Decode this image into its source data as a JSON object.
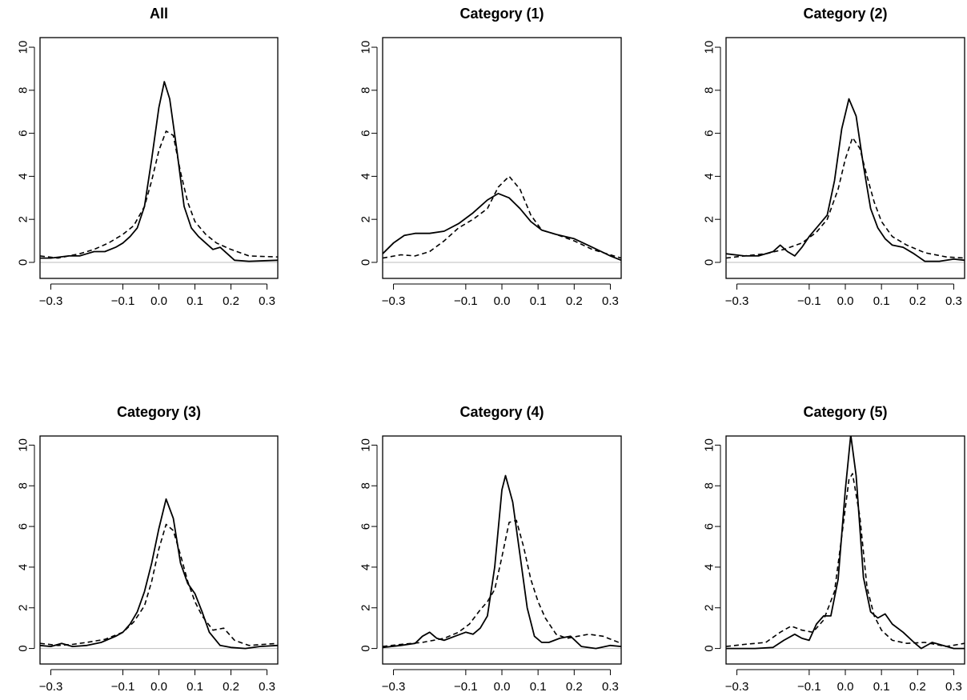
{
  "chart_data": [
    {
      "type": "line",
      "title": "All",
      "xlim": [
        -0.33,
        0.33
      ],
      "ylim": [
        0,
        10
      ],
      "xticks": [
        -0.3,
        -0.1,
        0.0,
        0.1,
        0.2,
        0.3
      ],
      "xtick_labels": [
        "−0.3",
        "−0.1",
        "0.0",
        "0.1",
        "0.2",
        "0.3"
      ],
      "yticks": [
        0,
        2,
        4,
        6,
        8,
        10
      ],
      "ytick_labels": [
        "0",
        "2",
        "4",
        "6",
        "8",
        "10"
      ],
      "series": [
        {
          "style": "solid",
          "x": [
            -0.33,
            -0.3,
            -0.25,
            -0.22,
            -0.2,
            -0.18,
            -0.15,
            -0.12,
            -0.1,
            -0.08,
            -0.06,
            -0.04,
            -0.02,
            0.0,
            0.015,
            0.03,
            0.05,
            0.07,
            0.09,
            0.11,
            0.13,
            0.15,
            0.17,
            0.19,
            0.21,
            0.25,
            0.3,
            0.33
          ],
          "y": [
            0.2,
            0.2,
            0.3,
            0.3,
            0.4,
            0.5,
            0.5,
            0.7,
            0.9,
            1.2,
            1.6,
            2.6,
            4.8,
            7.2,
            8.4,
            7.6,
            5.2,
            2.6,
            1.6,
            1.2,
            0.9,
            0.6,
            0.7,
            0.4,
            0.1,
            0.05,
            0.08,
            0.1
          ]
        },
        {
          "style": "dashed",
          "x": [
            -0.33,
            -0.28,
            -0.22,
            -0.18,
            -0.14,
            -0.1,
            -0.07,
            -0.04,
            -0.02,
            0.0,
            0.02,
            0.04,
            0.06,
            0.08,
            0.1,
            0.13,
            0.16,
            0.2,
            0.25,
            0.33
          ],
          "y": [
            0.3,
            0.2,
            0.4,
            0.6,
            0.9,
            1.3,
            1.7,
            2.6,
            3.8,
            5.2,
            6.1,
            5.9,
            4.2,
            2.8,
            1.9,
            1.3,
            0.9,
            0.6,
            0.3,
            0.25
          ]
        }
      ]
    },
    {
      "type": "line",
      "title": "Category (1)",
      "xlim": [
        -0.33,
        0.33
      ],
      "ylim": [
        0,
        10
      ],
      "xticks": [
        -0.3,
        -0.1,
        0.0,
        0.1,
        0.2,
        0.3
      ],
      "xtick_labels": [
        "−0.3",
        "−0.1",
        "0.0",
        "0.1",
        "0.2",
        "0.3"
      ],
      "yticks": [
        0,
        2,
        4,
        6,
        8,
        10
      ],
      "ytick_labels": [
        "0",
        "2",
        "4",
        "6",
        "8",
        "10"
      ],
      "series": [
        {
          "style": "solid",
          "x": [
            -0.33,
            -0.3,
            -0.27,
            -0.24,
            -0.2,
            -0.16,
            -0.12,
            -0.08,
            -0.04,
            -0.01,
            0.02,
            0.05,
            0.08,
            0.11,
            0.15,
            0.2,
            0.25,
            0.3,
            0.33
          ],
          "y": [
            0.4,
            0.9,
            1.25,
            1.35,
            1.35,
            1.45,
            1.8,
            2.3,
            2.9,
            3.2,
            3.0,
            2.5,
            1.9,
            1.5,
            1.3,
            1.1,
            0.7,
            0.3,
            0.1
          ]
        },
        {
          "style": "dashed",
          "x": [
            -0.33,
            -0.28,
            -0.24,
            -0.2,
            -0.16,
            -0.12,
            -0.08,
            -0.04,
            -0.01,
            0.02,
            0.05,
            0.08,
            0.11,
            0.15,
            0.2,
            0.25,
            0.3,
            0.33
          ],
          "y": [
            0.2,
            0.35,
            0.3,
            0.5,
            1.0,
            1.6,
            2.0,
            2.5,
            3.5,
            4.0,
            3.4,
            2.2,
            1.5,
            1.3,
            1.0,
            0.6,
            0.35,
            0.2
          ]
        }
      ]
    },
    {
      "type": "line",
      "title": "Category (2)",
      "xlim": [
        -0.33,
        0.33
      ],
      "ylim": [
        0,
        10
      ],
      "xticks": [
        -0.3,
        -0.1,
        0.0,
        0.1,
        0.2,
        0.3
      ],
      "xtick_labels": [
        "−0.3",
        "−0.1",
        "0.0",
        "0.1",
        "0.2",
        "0.3"
      ],
      "yticks": [
        0,
        2,
        4,
        6,
        8,
        10
      ],
      "ytick_labels": [
        "0",
        "2",
        "4",
        "6",
        "8",
        "10"
      ],
      "series": [
        {
          "style": "solid",
          "x": [
            -0.33,
            -0.28,
            -0.24,
            -0.2,
            -0.18,
            -0.16,
            -0.14,
            -0.12,
            -0.1,
            -0.08,
            -0.05,
            -0.03,
            -0.01,
            0.01,
            0.03,
            0.05,
            0.07,
            0.09,
            0.11,
            0.13,
            0.16,
            0.19,
            0.22,
            0.26,
            0.3,
            0.33
          ],
          "y": [
            0.4,
            0.3,
            0.3,
            0.5,
            0.8,
            0.5,
            0.3,
            0.7,
            1.2,
            1.6,
            2.2,
            3.8,
            6.2,
            7.6,
            6.8,
            4.5,
            2.5,
            1.6,
            1.1,
            0.8,
            0.7,
            0.4,
            0.05,
            0.05,
            0.15,
            0.1
          ]
        },
        {
          "style": "dashed",
          "x": [
            -0.33,
            -0.28,
            -0.22,
            -0.17,
            -0.12,
            -0.08,
            -0.05,
            -0.02,
            0.0,
            0.02,
            0.04,
            0.06,
            0.08,
            0.1,
            0.13,
            0.17,
            0.22,
            0.28,
            0.33
          ],
          "y": [
            0.2,
            0.3,
            0.4,
            0.6,
            0.9,
            1.4,
            2.0,
            3.4,
            4.8,
            5.8,
            5.3,
            4.0,
            2.8,
            1.9,
            1.2,
            0.8,
            0.45,
            0.25,
            0.2
          ]
        }
      ]
    },
    {
      "type": "line",
      "title": "Category (3)",
      "xlim": [
        -0.33,
        0.33
      ],
      "ylim": [
        0,
        10
      ],
      "xticks": [
        -0.3,
        -0.1,
        0.0,
        0.1,
        0.2,
        0.3
      ],
      "xtick_labels": [
        "−0.3",
        "−0.1",
        "0.0",
        "0.1",
        "0.2",
        "0.3"
      ],
      "yticks": [
        0,
        2,
        4,
        6,
        8,
        10
      ],
      "ytick_labels": [
        "0",
        "2",
        "4",
        "6",
        "8",
        "10"
      ],
      "series": [
        {
          "style": "solid",
          "x": [
            -0.33,
            -0.3,
            -0.27,
            -0.24,
            -0.2,
            -0.16,
            -0.12,
            -0.1,
            -0.08,
            -0.06,
            -0.04,
            -0.02,
            0.0,
            0.02,
            0.04,
            0.06,
            0.08,
            0.1,
            0.12,
            0.14,
            0.17,
            0.2,
            0.24,
            0.28,
            0.33
          ],
          "y": [
            0.15,
            0.1,
            0.25,
            0.1,
            0.15,
            0.3,
            0.6,
            0.8,
            1.2,
            1.8,
            2.8,
            4.2,
            5.9,
            7.35,
            6.4,
            4.2,
            3.2,
            2.7,
            1.8,
            0.8,
            0.15,
            0.05,
            0.0,
            0.1,
            0.15
          ]
        },
        {
          "style": "dashed",
          "x": [
            -0.33,
            -0.28,
            -0.24,
            -0.2,
            -0.15,
            -0.1,
            -0.07,
            -0.04,
            -0.02,
            0.0,
            0.02,
            0.04,
            0.06,
            0.08,
            0.1,
            0.12,
            0.15,
            0.18,
            0.21,
            0.25,
            0.33
          ],
          "y": [
            0.25,
            0.15,
            0.2,
            0.3,
            0.45,
            0.8,
            1.3,
            2.1,
            3.3,
            4.9,
            6.1,
            5.8,
            4.6,
            3.3,
            2.3,
            1.6,
            0.9,
            1.0,
            0.4,
            0.15,
            0.25
          ]
        }
      ]
    },
    {
      "type": "line",
      "title": "Category (4)",
      "xlim": [
        -0.33,
        0.33
      ],
      "ylim": [
        0,
        10
      ],
      "xticks": [
        -0.3,
        -0.1,
        0.0,
        0.1,
        0.2,
        0.3
      ],
      "xtick_labels": [
        "−0.3",
        "−0.1",
        "0.0",
        "0.1",
        "0.2",
        "0.3"
      ],
      "yticks": [
        0,
        2,
        4,
        6,
        8,
        10
      ],
      "ytick_labels": [
        "0",
        "2",
        "4",
        "6",
        "8",
        "10"
      ],
      "series": [
        {
          "style": "solid",
          "x": [
            -0.33,
            -0.28,
            -0.24,
            -0.22,
            -0.2,
            -0.18,
            -0.16,
            -0.13,
            -0.1,
            -0.08,
            -0.06,
            -0.04,
            -0.02,
            0.0,
            0.01,
            0.03,
            0.05,
            0.07,
            0.09,
            0.11,
            0.13,
            0.16,
            0.19,
            0.22,
            0.26,
            0.3,
            0.33
          ],
          "y": [
            0.05,
            0.15,
            0.25,
            0.6,
            0.8,
            0.5,
            0.4,
            0.6,
            0.8,
            0.7,
            1.0,
            1.6,
            4.0,
            7.8,
            8.5,
            7.2,
            4.6,
            2.0,
            0.6,
            0.3,
            0.3,
            0.5,
            0.6,
            0.1,
            0.0,
            0.15,
            0.1
          ]
        },
        {
          "style": "dashed",
          "x": [
            -0.33,
            -0.28,
            -0.22,
            -0.16,
            -0.12,
            -0.09,
            -0.06,
            -0.04,
            -0.02,
            0.0,
            0.02,
            0.04,
            0.06,
            0.08,
            0.1,
            0.12,
            0.15,
            0.18,
            0.21,
            0.24,
            0.28,
            0.33
          ],
          "y": [
            0.1,
            0.2,
            0.3,
            0.5,
            0.8,
            1.2,
            1.9,
            2.3,
            2.9,
            4.5,
            6.2,
            6.3,
            5.0,
            3.4,
            2.3,
            1.5,
            0.7,
            0.5,
            0.6,
            0.7,
            0.6,
            0.25
          ]
        }
      ]
    },
    {
      "type": "line",
      "title": "Category (5)",
      "xlim": [
        -0.33,
        0.33
      ],
      "ylim": [
        0,
        10
      ],
      "xticks": [
        -0.3,
        -0.1,
        0.0,
        0.1,
        0.2,
        0.3
      ],
      "xtick_labels": [
        "−0.3",
        "−0.1",
        "0.0",
        "0.1",
        "0.2",
        "0.3"
      ],
      "yticks": [
        0,
        2,
        4,
        6,
        8,
        10
      ],
      "ytick_labels": [
        "0",
        "2",
        "4",
        "6",
        "8",
        "10"
      ],
      "series": [
        {
          "style": "solid",
          "x": [
            -0.33,
            -0.25,
            -0.2,
            -0.17,
            -0.14,
            -0.12,
            -0.1,
            -0.08,
            -0.06,
            -0.04,
            -0.02,
            0.0,
            0.015,
            0.03,
            0.05,
            0.07,
            0.09,
            0.11,
            0.13,
            0.16,
            0.19,
            0.21,
            0.24,
            0.26,
            0.3,
            0.33
          ],
          "y": [
            0.0,
            0.0,
            0.05,
            0.4,
            0.7,
            0.5,
            0.4,
            1.2,
            1.6,
            1.6,
            3.4,
            7.8,
            10.5,
            8.5,
            3.5,
            1.8,
            1.5,
            1.7,
            1.2,
            0.8,
            0.3,
            0.0,
            0.3,
            0.2,
            0.0,
            0.0
          ]
        },
        {
          "style": "dashed",
          "x": [
            -0.33,
            -0.28,
            -0.22,
            -0.18,
            -0.15,
            -0.12,
            -0.09,
            -0.06,
            -0.03,
            -0.01,
            0.01,
            0.02,
            0.04,
            0.06,
            0.08,
            0.1,
            0.13,
            0.17,
            0.22,
            0.28,
            0.33
          ],
          "y": [
            0.1,
            0.2,
            0.3,
            0.8,
            1.1,
            0.9,
            0.8,
            1.4,
            2.8,
            5.5,
            8.3,
            8.6,
            6.5,
            3.0,
            1.6,
            0.9,
            0.4,
            0.25,
            0.3,
            0.1,
            0.25
          ]
        }
      ]
    }
  ]
}
